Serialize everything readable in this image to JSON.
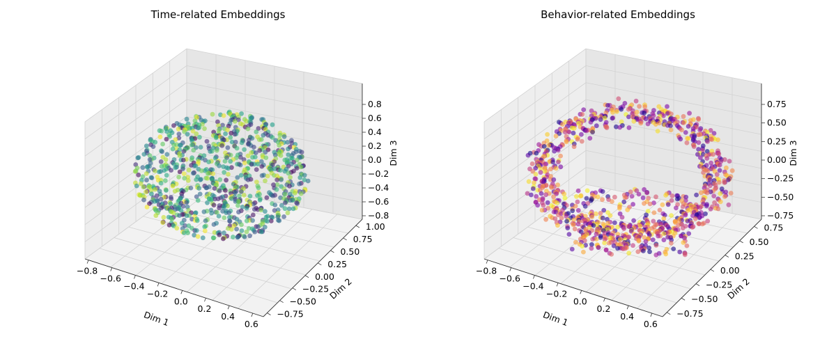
{
  "chart_data": [
    {
      "type": "scatter",
      "projection": "3d",
      "title": "Time-related Embeddings",
      "xlabel": "Dim 1",
      "ylabel": "Dim 2",
      "zlabel": "Dim 3",
      "xticks": [
        "−0.8",
        "−0.6",
        "−0.4",
        "−0.2",
        "0.0",
        "0.2",
        "0.4",
        "0.6"
      ],
      "yticks": [
        "−0.75",
        "−0.50",
        "−0.25",
        "0.00",
        "0.25",
        "0.50",
        "0.75",
        "1.00"
      ],
      "zticks": [
        "−0.8",
        "−0.6",
        "−0.4",
        "−0.2",
        "0.0",
        "0.2",
        "0.4",
        "0.6",
        "0.8"
      ],
      "xlim": [
        -0.85,
        0.72
      ],
      "ylim": [
        -0.9,
        1.05
      ],
      "zlim": [
        -0.9,
        0.95
      ],
      "colormap": "viridis",
      "grid": true,
      "shape": "ball",
      "n_points": 900,
      "point_alpha": 0.6
    },
    {
      "type": "scatter",
      "projection": "3d",
      "title": "Behavior-related Embeddings",
      "xlabel": "Dim 1",
      "ylabel": "Dim 2",
      "zlabel": "Dim 3",
      "xticks": [
        "−0.8",
        "−0.6",
        "−0.4",
        "−0.2",
        "0.0",
        "0.2",
        "0.4",
        "0.6"
      ],
      "yticks": [
        "−0.75",
        "−0.50",
        "−0.25",
        "0.00",
        "0.25",
        "0.50",
        "0.75"
      ],
      "zticks": [
        "−0.75",
        "−0.50",
        "−0.25",
        "0.00",
        "0.25",
        "0.50",
        "0.75"
      ],
      "xlim": [
        -0.9,
        0.7
      ],
      "ylim": [
        -0.95,
        0.9
      ],
      "zlim": [
        -0.95,
        0.95
      ],
      "colormap": "plasma",
      "grid": true,
      "shape": "shell",
      "n_points": 1000,
      "point_alpha": 0.6
    }
  ]
}
